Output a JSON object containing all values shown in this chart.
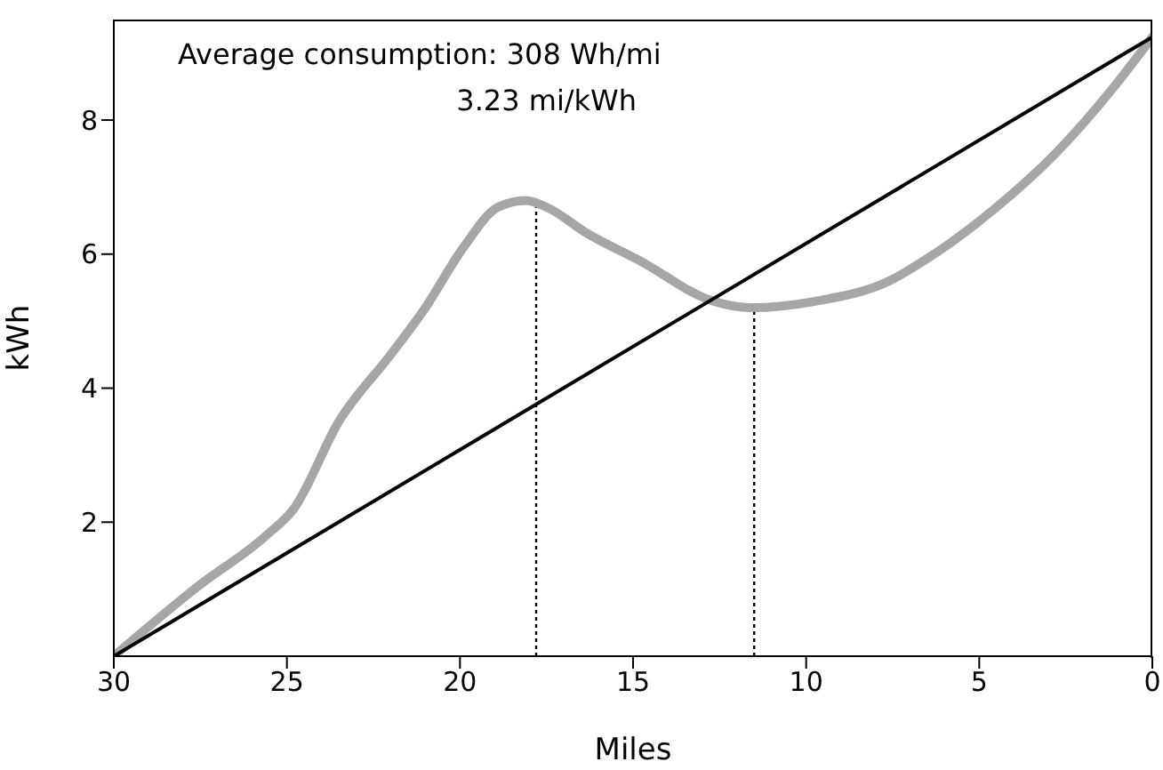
{
  "chart_data": {
    "type": "line",
    "xlabel": "Miles",
    "ylabel": "kWh",
    "annotations": [
      "Average consumption: 308 Wh/mi",
      "3.23 mi/kWh"
    ],
    "series": [
      {
        "color": "#a6a6a6",
        "x": [
          30,
          27.6,
          25.6,
          24.8,
          23.5,
          22.0,
          21.0,
          19.9,
          18.9,
          18.1,
          17.5,
          16.3,
          14.8,
          12.7,
          11.6,
          9.7,
          7.6,
          6.6,
          4.5,
          2.8,
          1.1,
          0
        ],
        "values": [
          0,
          1.03,
          1.8,
          2.2,
          3.5,
          4.5,
          5.2,
          6.1,
          6.7,
          6.8,
          6.7,
          6.3,
          5.9,
          5.3,
          5.2,
          5.3,
          5.6,
          5.9,
          6.7,
          7.5,
          8.5,
          9.24
        ]
      },
      {
        "color": "#000000",
        "x": [
          30,
          0
        ],
        "values": [
          0,
          9.24
        ]
      }
    ],
    "xlim": [
      30,
      0
    ],
    "xticks": [
      30,
      25,
      20,
      15,
      10,
      5,
      0
    ],
    "ylim": [
      0,
      9.5
    ],
    "yticks": [
      2,
      4,
      6,
      8
    ],
    "ref_lines": [
      {
        "axis": "x",
        "value": 17.8,
        "color": "#000000",
        "line_style": "dotted"
      },
      {
        "axis": "x",
        "value": 11.5,
        "color": "#000000",
        "line_style": "dotted"
      }
    ],
    "grid": false,
    "legend": false,
    "marker": "none",
    "line_style": "solid"
  }
}
